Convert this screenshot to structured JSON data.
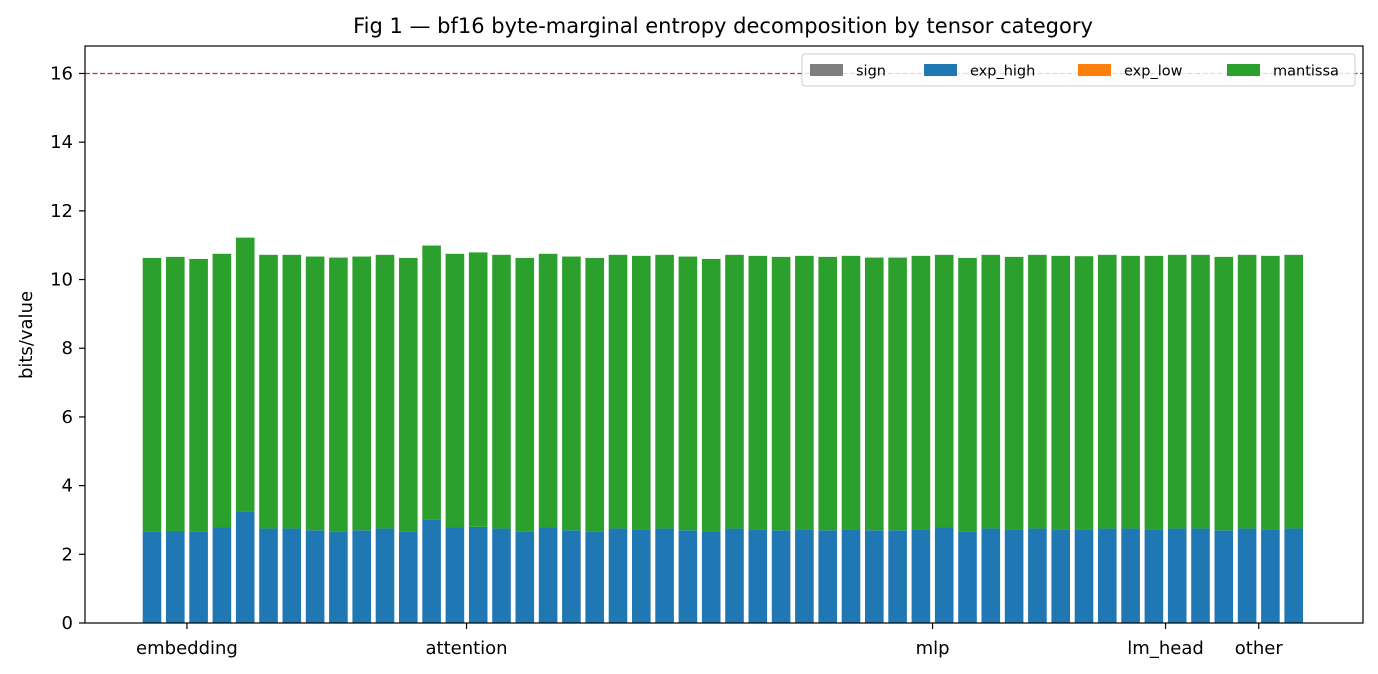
{
  "chart_data": {
    "type": "bar",
    "stacked": true,
    "title": "Fig 1 — bf16 byte-marginal entropy decomposition by tensor category",
    "xlabel": "",
    "ylabel": "bits/value",
    "ylim": [
      0,
      16.8
    ],
    "yticks": [
      0,
      2,
      4,
      6,
      8,
      10,
      12,
      14,
      16
    ],
    "reference_line": {
      "y": 16,
      "color": "#d62728",
      "style": "dashed"
    },
    "legend": {
      "placement": "top-right",
      "columns": 4
    },
    "category_labels": [
      {
        "label": "embedding",
        "bar_index": 1.5
      },
      {
        "label": "attention",
        "bar_index": 13.5
      },
      {
        "label": "mlp",
        "bar_index": 33.5
      },
      {
        "label": "lm_head",
        "bar_index": 43.5
      },
      {
        "label": "other",
        "bar_index": 47.5
      }
    ],
    "series": [
      {
        "name": "sign",
        "color": "#7f7f7f",
        "values": [
          0,
          0,
          0,
          0,
          0,
          0,
          0,
          0,
          0,
          0,
          0,
          0,
          0,
          0,
          0,
          0,
          0,
          0,
          0,
          0,
          0,
          0,
          0,
          0,
          0,
          0,
          0,
          0,
          0,
          0,
          0,
          0,
          0,
          0,
          0,
          0,
          0,
          0,
          0,
          0,
          0,
          0,
          0,
          0,
          0,
          0,
          0,
          0,
          0,
          0
        ]
      },
      {
        "name": "exp_high",
        "color": "#1f77b4",
        "values": [
          2.67,
          2.68,
          2.67,
          2.78,
          3.25,
          2.75,
          2.75,
          2.7,
          2.67,
          2.7,
          2.75,
          2.67,
          3.02,
          2.78,
          2.8,
          2.75,
          2.67,
          2.78,
          2.7,
          2.67,
          2.75,
          2.72,
          2.75,
          2.7,
          2.65,
          2.75,
          2.72,
          2.7,
          2.72,
          2.7,
          2.72,
          2.7,
          2.7,
          2.72,
          2.78,
          2.67,
          2.75,
          2.72,
          2.75,
          2.72,
          2.72,
          2.75,
          2.75,
          2.72,
          2.75,
          2.75,
          2.7,
          2.75,
          2.72,
          2.75
        ]
      },
      {
        "name": "exp_low",
        "color": "#ff7f0e",
        "values": [
          0,
          0,
          0,
          0,
          0,
          0,
          0,
          0,
          0,
          0,
          0,
          0,
          0,
          0,
          0,
          0,
          0,
          0,
          0,
          0,
          0,
          0,
          0,
          0,
          0,
          0,
          0,
          0,
          0,
          0,
          0,
          0,
          0,
          0,
          0,
          0,
          0,
          0,
          0,
          0,
          0,
          0,
          0,
          0,
          0,
          0,
          0,
          0,
          0,
          0
        ]
      },
      {
        "name": "mantissa",
        "color": "#2ca02c",
        "values": [
          7.96,
          7.98,
          7.93,
          7.97,
          7.97,
          7.97,
          7.97,
          7.97,
          7.97,
          7.97,
          7.97,
          7.96,
          7.97,
          7.97,
          7.99,
          7.97,
          7.96,
          7.97,
          7.97,
          7.96,
          7.97,
          7.97,
          7.97,
          7.97,
          7.95,
          7.97,
          7.97,
          7.96,
          7.97,
          7.96,
          7.97,
          7.94,
          7.94,
          7.97,
          7.94,
          7.96,
          7.97,
          7.94,
          7.97,
          7.97,
          7.96,
          7.97,
          7.94,
          7.97,
          7.97,
          7.97,
          7.96,
          7.97,
          7.97,
          7.97
        ]
      }
    ]
  }
}
